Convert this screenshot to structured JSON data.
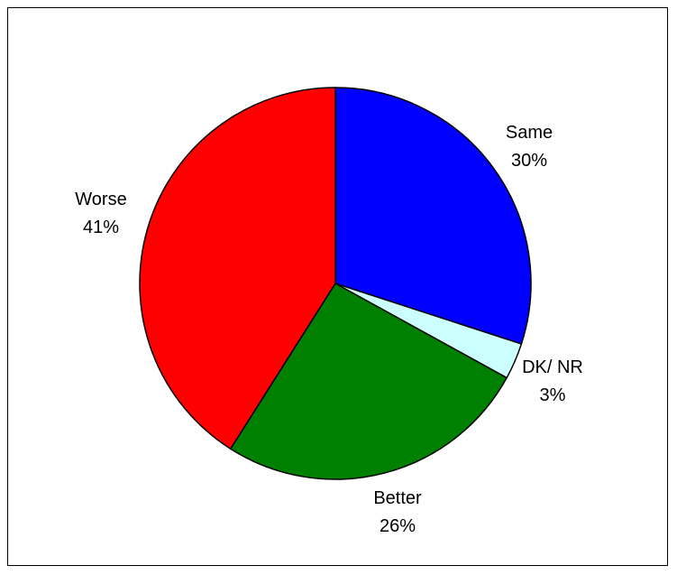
{
  "chart_data": {
    "type": "pie",
    "title": "",
    "slices": [
      {
        "label": "Same",
        "percent_label": "30%",
        "value": 30,
        "color": "#0000ff"
      },
      {
        "label": "DK/ NR",
        "percent_label": "3%",
        "value": 3,
        "color": "#ccffff"
      },
      {
        "label": "Better",
        "percent_label": "26%",
        "value": 26,
        "color": "#008000"
      },
      {
        "label": "Worse",
        "percent_label": "41%",
        "value": 41,
        "color": "#ff0000"
      }
    ],
    "start_angle_deg": 0,
    "direction": "clockwise",
    "legend": "none",
    "slice_border_color": "#000000"
  }
}
